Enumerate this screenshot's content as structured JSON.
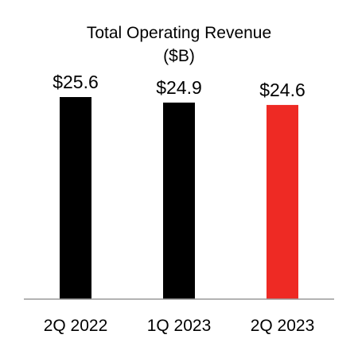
{
  "chart_data": {
    "type": "bar",
    "title": "Total Operating Revenue",
    "subtitle": "($B)",
    "categories": [
      "2Q 2022",
      "1Q 2023",
      "2Q 2023"
    ],
    "values": [
      25.6,
      24.9,
      24.6
    ],
    "data_labels": [
      "$25.6",
      "$24.9",
      "$24.6"
    ],
    "bar_colors": [
      "#000000",
      "#000000",
      "#ee2a24"
    ],
    "ylim": [
      0,
      25.6
    ],
    "grid": false,
    "legend": "none"
  }
}
